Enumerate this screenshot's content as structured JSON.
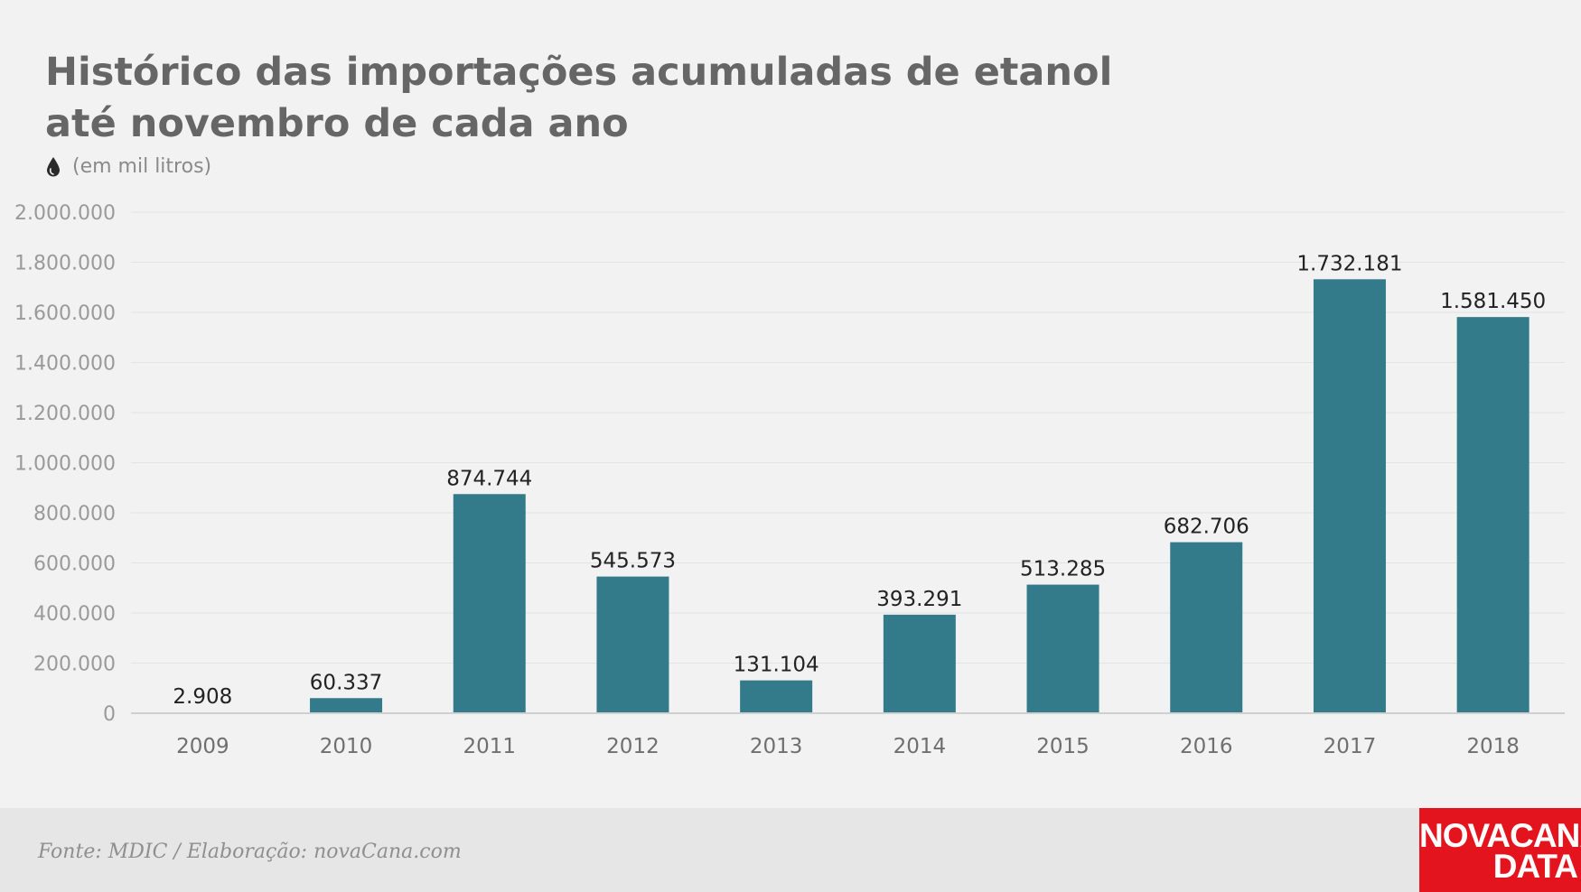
{
  "header": {
    "title": "Histórico das importações acumuladas de etanol até novembro de cada ano",
    "subtitle": "(em mil litros)",
    "subtitle_icon": "drop-icon"
  },
  "chart_data": {
    "type": "bar",
    "categories": [
      "2009",
      "2010",
      "2011",
      "2012",
      "2013",
      "2014",
      "2015",
      "2016",
      "2017",
      "2018"
    ],
    "values": [
      2908,
      60337,
      874744,
      545573,
      131104,
      393291,
      513285,
      682706,
      1732181,
      1581450
    ],
    "data_labels": [
      "2.908",
      "60.337",
      "874.744",
      "545.573",
      "131.104",
      "393.291",
      "513.285",
      "682.706",
      "1.732.181",
      "1.581.450"
    ],
    "yticks": [
      0,
      200000,
      400000,
      600000,
      800000,
      1000000,
      1200000,
      1400000,
      1600000,
      1800000,
      2000000
    ],
    "ytick_labels": [
      "0",
      "200.000",
      "400.000",
      "600.000",
      "800.000",
      "1.000.000",
      "1.200.000",
      "1.400.000",
      "1.600.000",
      "1.800.000",
      "2.000.000"
    ],
    "ylim": [
      0,
      2000000
    ],
    "grid": true,
    "bar_color": "#337b8a",
    "title": "Histórico das importações acumuladas de etanol até novembro de cada ano",
    "xlabel": "",
    "ylabel": ""
  },
  "footer": {
    "source": "Fonte: MDIC / Elaboração: novaCana.com",
    "logo_line1": "NOVACANA",
    "logo_line2": "DATA",
    "logo_color": "#e4141e"
  }
}
